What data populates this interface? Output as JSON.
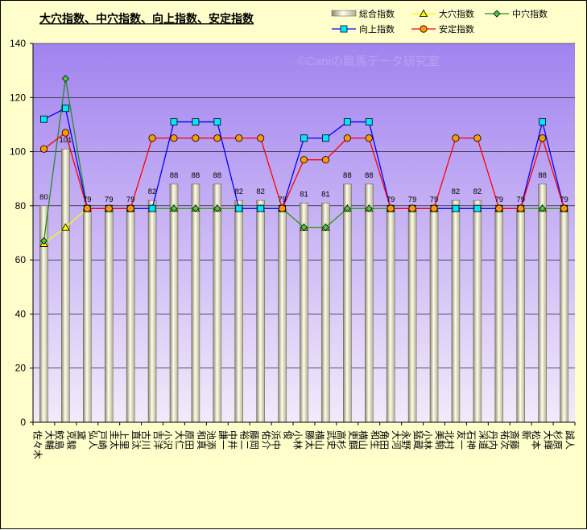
{
  "chart_data": {
    "type": "bar",
    "title": "大穴指数、中穴指数、向上指数、安定指数",
    "watermark": "©Caniの競馬データ研究室",
    "ylim": [
      0,
      140
    ],
    "yticks": [
      0,
      20,
      40,
      60,
      80,
      100,
      120,
      140
    ],
    "grid": true,
    "legend_position": "top-right",
    "categories": [
      "佐々木 大輔",
      "鮫島 克駿",
      "黛 弘人",
      "戸崎 圭太",
      "上里 直汰",
      "古川 吉洋",
      "小沢 大仁",
      "原田 和真",
      "池添 謙一",
      "中井 裕二",
      "藤岡 佑介",
      "浜中 俊",
      "小林 勝太",
      "横山 武史",
      "高杉 吏麒",
      "横山 和生",
      "角田 大河",
      "永野 猛蔵",
      "小林 美駒",
      "北村 友一",
      "石神 深道",
      "丹内 祐次",
      "斎藤 新",
      "松本 大輝",
      "杉原 誠人"
    ],
    "series": [
      {
        "name": "総合指数",
        "kind": "bar",
        "color": "#f0ecb8",
        "values": [
          80,
          101,
          79,
          79,
          79,
          82,
          88,
          88,
          88,
          82,
          82,
          79,
          81,
          81,
          88,
          88,
          79,
          79,
          79,
          82,
          82,
          79,
          79,
          88,
          79
        ]
      },
      {
        "name": "大穴指数",
        "kind": "line",
        "color": "#ffff00",
        "marker": "triangle",
        "values": [
          66,
          72,
          79,
          79,
          79,
          79,
          79,
          79,
          79,
          79,
          79,
          79,
          72,
          72,
          79,
          79,
          79,
          79,
          79,
          79,
          79,
          79,
          79,
          79,
          79
        ]
      },
      {
        "name": "中穴指数",
        "kind": "line",
        "color": "#228b22",
        "marker": "diamond",
        "values": [
          67,
          127,
          79,
          79,
          79,
          79,
          79,
          79,
          79,
          79,
          79,
          79,
          72,
          72,
          79,
          79,
          79,
          79,
          79,
          79,
          79,
          79,
          79,
          79,
          79
        ]
      },
      {
        "name": "向上指数",
        "kind": "line",
        "color": "#0000ff",
        "marker": "square",
        "values": [
          112,
          116,
          79,
          79,
          79,
          79,
          111,
          111,
          111,
          79,
          79,
          79,
          105,
          105,
          111,
          111,
          79,
          79,
          79,
          79,
          79,
          79,
          79,
          111,
          79
        ]
      },
      {
        "name": "安定指数",
        "kind": "line",
        "color": "#ff0000",
        "marker": "circle",
        "values": [
          101,
          107,
          79,
          79,
          79,
          105,
          105,
          105,
          105,
          105,
          105,
          79,
          97,
          97,
          105,
          105,
          79,
          79,
          79,
          105,
          105,
          79,
          79,
          105,
          79
        ]
      }
    ]
  }
}
